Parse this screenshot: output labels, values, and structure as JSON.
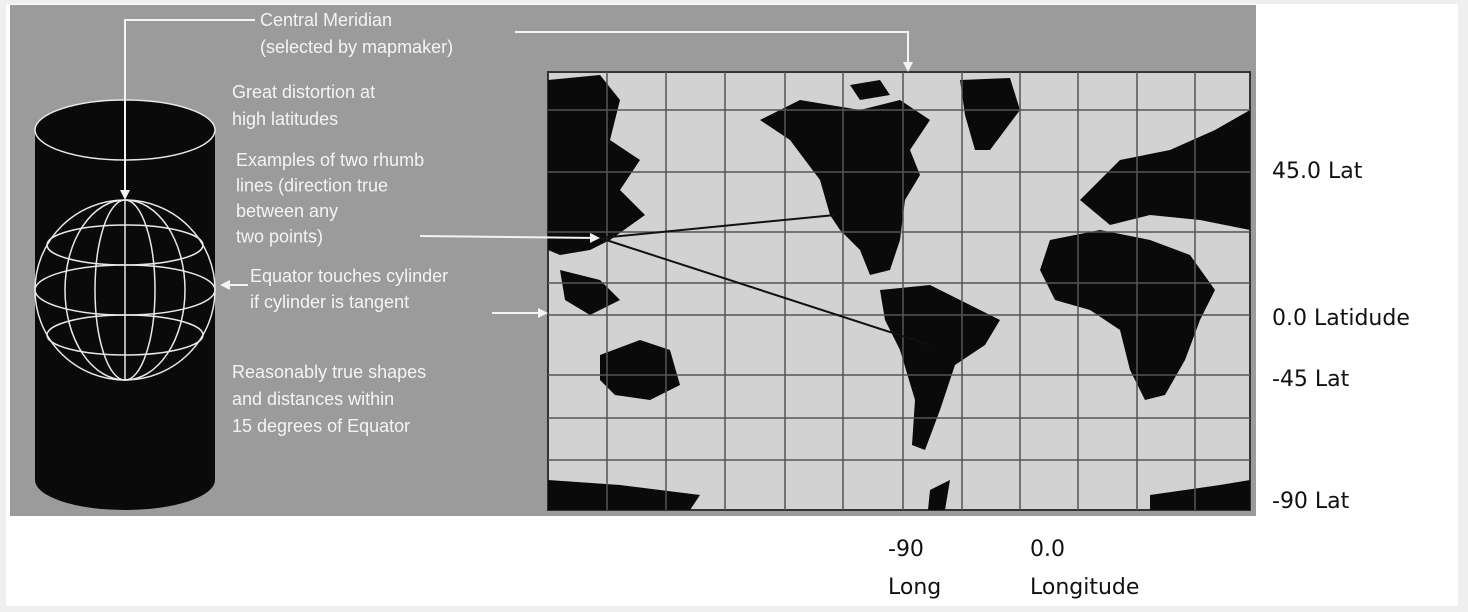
{
  "annotations": [
    [
      "Central Meridian",
      "(selected by mapmaker)"
    ],
    [
      "Great distortion at",
      "high latitudes"
    ],
    [
      "Examples of two rhumb",
      "lines (direction true",
      "between any",
      "two points)"
    ],
    [
      "Equator touches cylinder",
      "if cylinder is tangent"
    ],
    [
      "Reasonably true shapes",
      "and distances within",
      "15 degrees of Equator"
    ]
  ],
  "latitude_labels": [
    "45.0 Lat",
    "0.0 Latidude",
    "-45 Lat",
    "-90 Lat"
  ],
  "longitude_labels": [
    [
      "-90",
      "Long"
    ],
    [
      "0.0",
      "Longitude"
    ]
  ]
}
